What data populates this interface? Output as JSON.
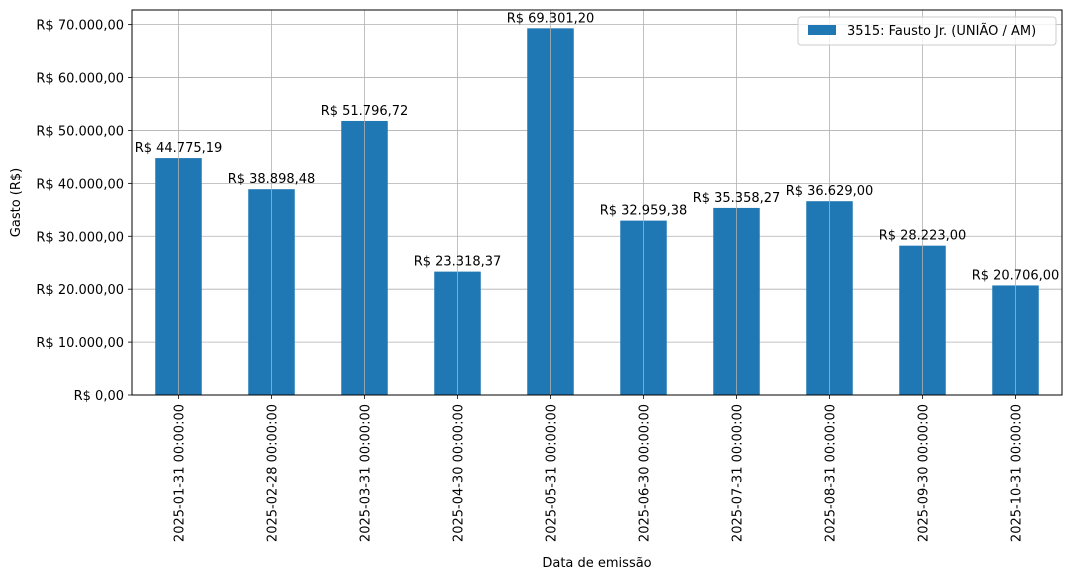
{
  "chart_data": {
    "type": "bar",
    "categories": [
      "2025-01-31 00:00:00",
      "2025-02-28 00:00:00",
      "2025-03-31 00:00:00",
      "2025-04-30 00:00:00",
      "2025-05-31 00:00:00",
      "2025-06-30 00:00:00",
      "2025-07-31 00:00:00",
      "2025-08-31 00:00:00",
      "2025-09-30 00:00:00",
      "2025-10-31 00:00:00"
    ],
    "series": [
      {
        "name": "3515: Fausto Jr. (UNIÃO / AM)",
        "color": "#1f77b4",
        "values": [
          44775.19,
          38898.48,
          51796.72,
          23318.37,
          69301.2,
          32959.38,
          35358.27,
          36629.0,
          28223.0,
          20706.0
        ]
      }
    ],
    "data_labels": [
      "R$ 44.775,19",
      "R$ 38.898,48",
      "R$ 51.796,72",
      "R$ 23.318,37",
      "R$ 69.301,20",
      "R$ 32.959,38",
      "R$ 35.358,27",
      "R$ 36.629,00",
      "R$ 28.223,00",
      "R$ 20.706,00"
    ],
    "yticks": [
      0,
      10000,
      20000,
      30000,
      40000,
      50000,
      60000,
      70000
    ],
    "ytick_labels": [
      "R$ 0,00",
      "R$ 10.000,00",
      "R$ 20.000,00",
      "R$ 30.000,00",
      "R$ 40.000,00",
      "R$ 50.000,00",
      "R$ 60.000,00",
      "R$ 70.000,00"
    ],
    "xlabel": "Data de emissão",
    "ylabel": "Gasto (R$)",
    "ylim": [
      0,
      72766
    ],
    "grid": true,
    "legend_position": "top-right"
  }
}
